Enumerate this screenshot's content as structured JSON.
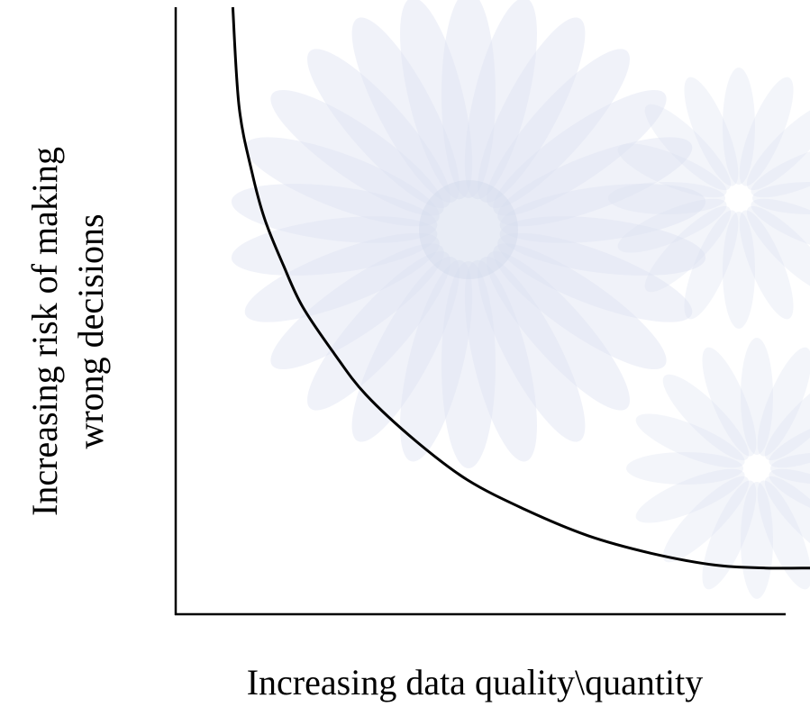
{
  "colors": {
    "background": "#ffffff",
    "watermark": "#dde3f1",
    "ink": "#000000"
  },
  "chart_data": {
    "type": "line",
    "title": "",
    "xlabel": "Increasing data quality\\quantity",
    "ylabel_lines": [
      "Increasing risk of making",
      "wrong decisions"
    ],
    "xlim": [
      0,
      1
    ],
    "ylim": [
      0,
      1
    ],
    "grid": false,
    "legend": "none",
    "series": [
      {
        "x": [
          0.09,
          0.1,
          0.12,
          0.14,
          0.17,
          0.2,
          0.25,
          0.3,
          0.38,
          0.46,
          0.55,
          0.65,
          0.75,
          0.85,
          0.93,
          1.0
        ],
        "y": [
          1.0,
          0.83,
          0.72,
          0.64,
          0.56,
          0.49,
          0.41,
          0.34,
          0.26,
          0.195,
          0.145,
          0.1,
          0.07,
          0.05,
          0.045,
          0.045
        ]
      }
    ]
  }
}
